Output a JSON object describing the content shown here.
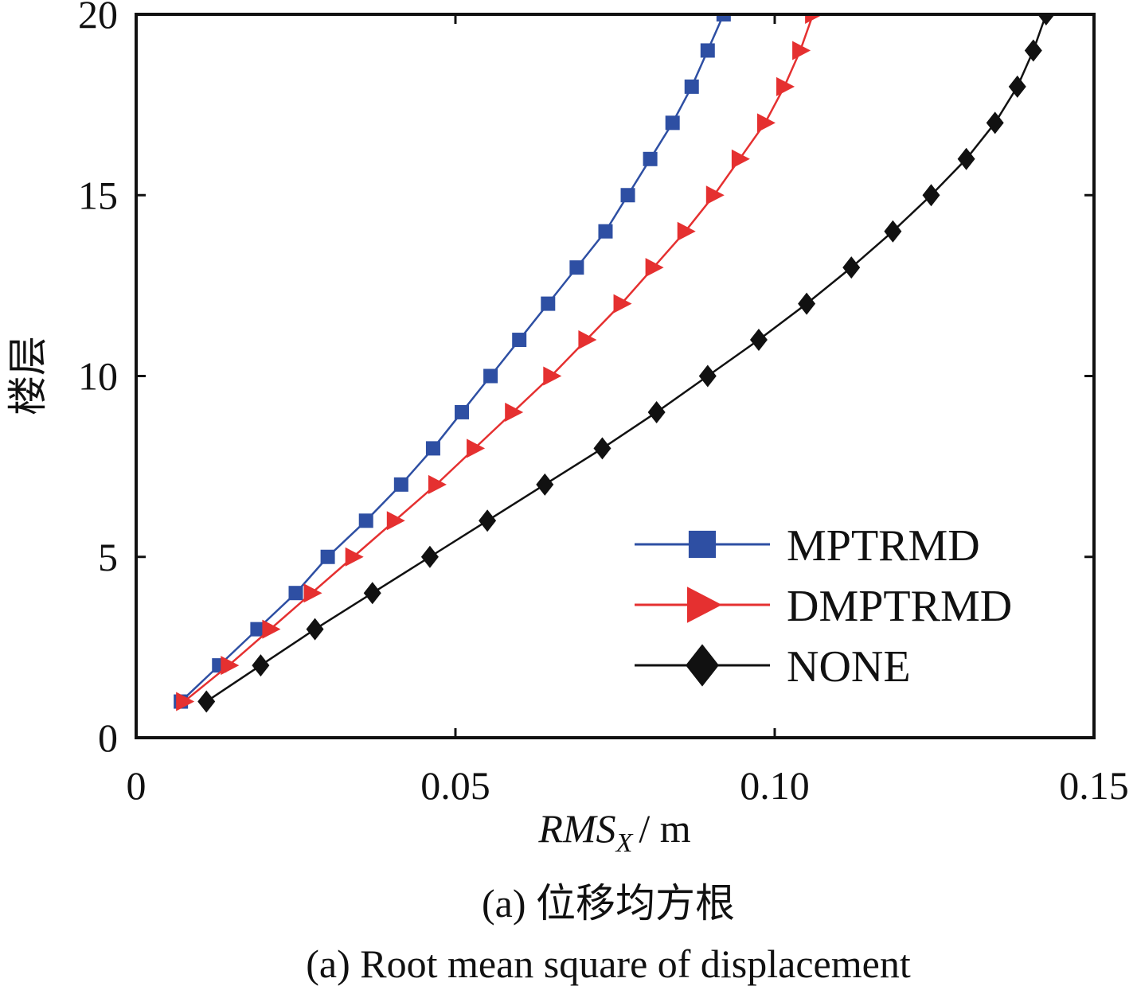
{
  "chart_data": {
    "type": "line",
    "xlabel_italic": "RMS",
    "xlabel_sub": "X",
    "xlabel_unit": "/ m",
    "ylabel": "楼层",
    "xlim": [
      0,
      0.15
    ],
    "ylim": [
      0,
      20
    ],
    "x_ticks": [
      0,
      0.05,
      0.1,
      0.15
    ],
    "x_tick_labels": [
      "0",
      "0.05",
      "0.10",
      "0.15"
    ],
    "y_ticks": [
      0,
      5,
      10,
      15,
      20
    ],
    "y_tick_labels": [
      "0",
      "5",
      "10",
      "15",
      "20"
    ],
    "grid": false,
    "legend_position": "bottom-right",
    "y": [
      1,
      2,
      3,
      4,
      5,
      6,
      7,
      8,
      9,
      10,
      11,
      12,
      13,
      14,
      15,
      16,
      17,
      18,
      19,
      20
    ],
    "series": [
      {
        "name": "MPTRMD",
        "color": "#2e4fa3",
        "marker": "square",
        "x": [
          0.007,
          0.013,
          0.019,
          0.025,
          0.03,
          0.036,
          0.0415,
          0.0465,
          0.051,
          0.0555,
          0.06,
          0.0645,
          0.069,
          0.0735,
          0.077,
          0.0805,
          0.084,
          0.087,
          0.0895,
          0.092
        ]
      },
      {
        "name": "DMPTRMD",
        "color": "#e53030",
        "marker": "triangle-right",
        "x": [
          0.0075,
          0.0145,
          0.021,
          0.0275,
          0.034,
          0.0405,
          0.047,
          0.053,
          0.059,
          0.065,
          0.0705,
          0.076,
          0.081,
          0.086,
          0.0905,
          0.0945,
          0.0985,
          0.1015,
          0.104,
          0.106
        ]
      },
      {
        "name": "NONE",
        "color": "#111111",
        "marker": "diamond",
        "x": [
          0.011,
          0.0195,
          0.028,
          0.037,
          0.046,
          0.055,
          0.064,
          0.073,
          0.0815,
          0.0895,
          0.0975,
          0.105,
          0.112,
          0.1185,
          0.1245,
          0.13,
          0.1345,
          0.138,
          0.1405,
          0.1425
        ]
      }
    ]
  },
  "captions": {
    "zh": "(a) 位移均方根",
    "en": "(a) Root mean square of displacement"
  }
}
